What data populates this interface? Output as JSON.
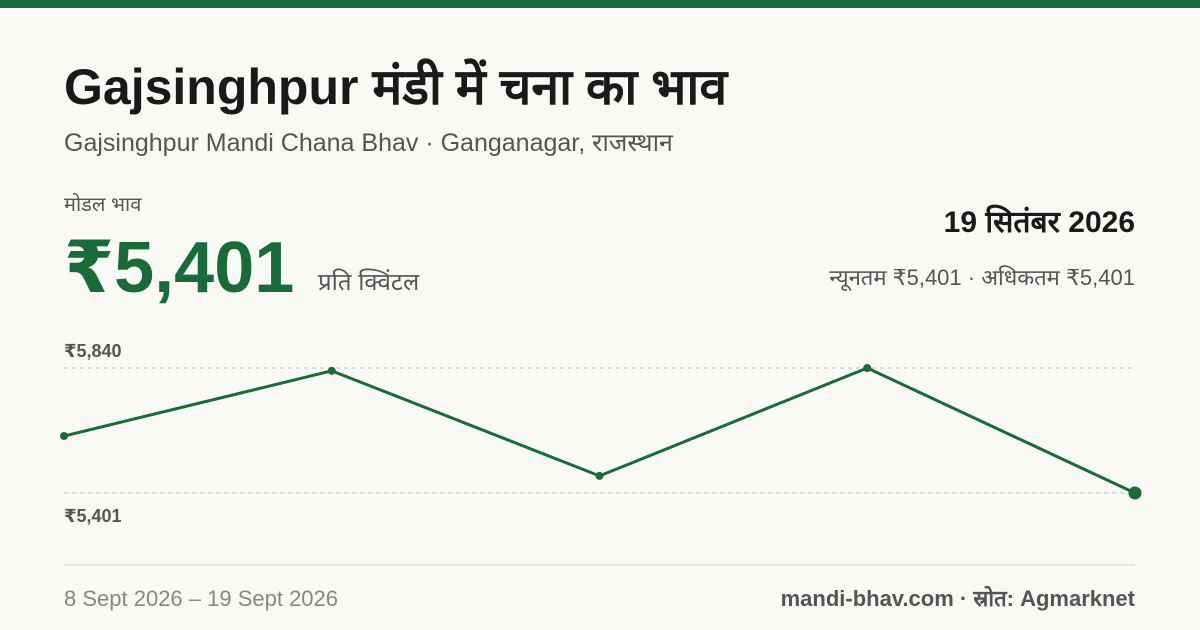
{
  "header": {
    "title": "Gajsinghpur मंडी में चना का भाव",
    "subtitle": "Gajsinghpur Mandi Chana Bhav · Ganganagar, राजस्थान",
    "price_label": "मोडल भाव",
    "price": "₹5,401",
    "unit": "प्रति क्विंटल",
    "date": "19 सितंबर 2026",
    "range": "न्यूनतम ₹5,401 · अधिकतम ₹5,401"
  },
  "chart_data": {
    "type": "line",
    "color": "#1a6b3a",
    "values": [
      5601,
      5830,
      5461,
      5840,
      5401
    ],
    "ylim": [
      5401,
      5840
    ],
    "yticks": [
      {
        "value": 5840,
        "label": "₹5,840"
      },
      {
        "value": 5401,
        "label": "₹5,401"
      }
    ],
    "grid": true
  },
  "footer": {
    "date_range": "8 Sept 2026 – 19 Sept 2026",
    "source": "mandi-bhav.com · स्रोत: Agmarknet"
  }
}
